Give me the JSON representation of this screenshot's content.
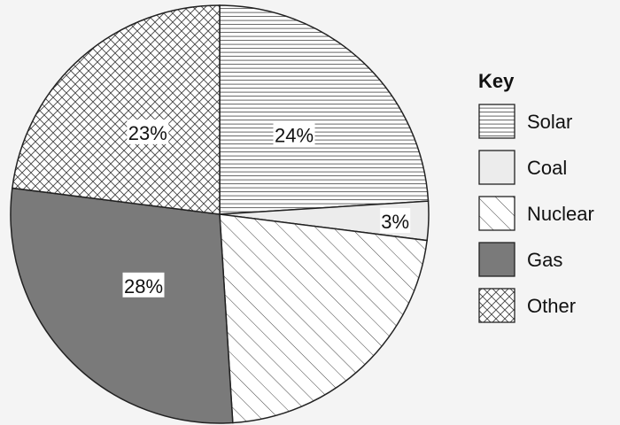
{
  "chart_data": {
    "type": "pie",
    "title": "",
    "legend_title": "Key",
    "legend_position": "right",
    "slices": [
      {
        "label": "Solar",
        "value": 24,
        "value_label": "24%",
        "pattern": "horizontal-lines",
        "color": "#ffffff"
      },
      {
        "label": "Coal",
        "value": 3,
        "value_label": "3%",
        "pattern": "solid-light",
        "color": "#ececec"
      },
      {
        "label": "Nuclear",
        "value": 22,
        "value_label": "",
        "pattern": "diagonal-lines",
        "color": "#ffffff"
      },
      {
        "label": "Gas",
        "value": 28,
        "value_label": "28%",
        "pattern": "solid-dark",
        "color": "#7a7a7a"
      },
      {
        "label": "Other",
        "value": 23,
        "value_label": "23%",
        "pattern": "crosshatch",
        "color": "#ffffff"
      }
    ]
  }
}
